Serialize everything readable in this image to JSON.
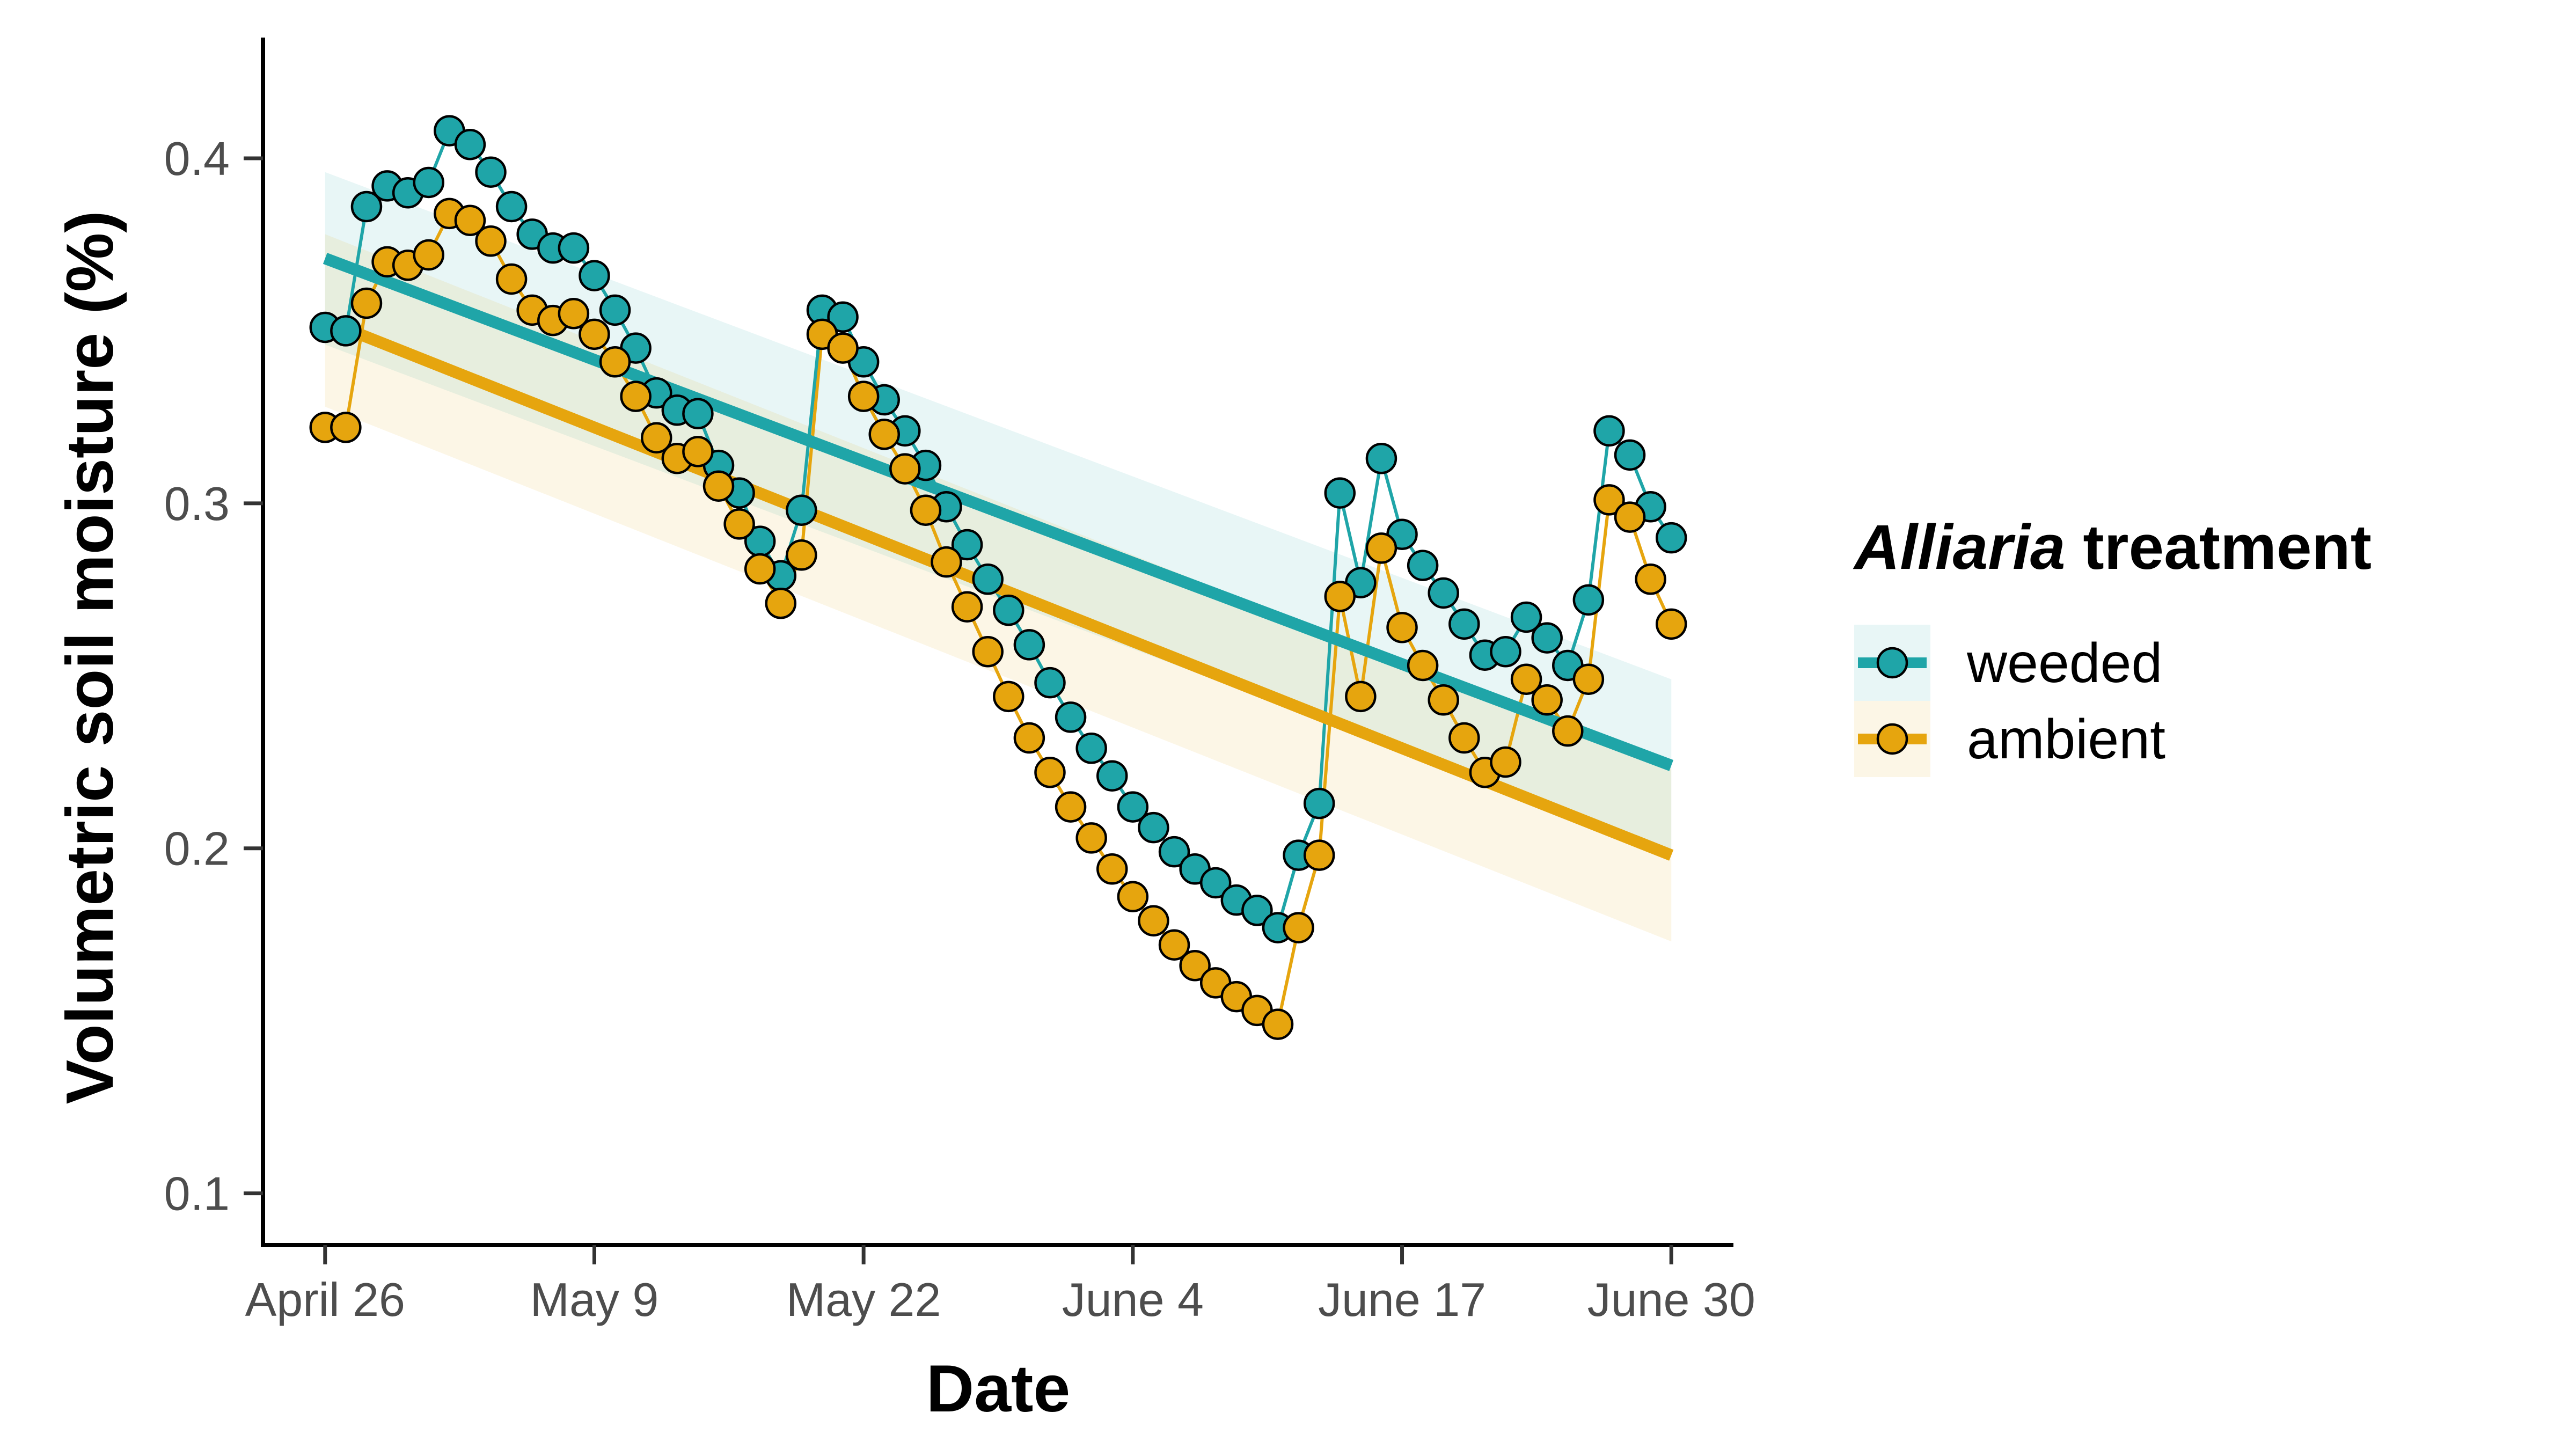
{
  "chart_data": {
    "type": "scatter",
    "title": "",
    "xlabel": "Date",
    "ylabel": "Volumetric soil moisture (%)",
    "x_ticks": [
      "April 26",
      "May 9",
      "May 22",
      "June 4",
      "June 17",
      "June 30"
    ],
    "x_range_days": [
      -3,
      68
    ],
    "y_ticks": [
      "0.1",
      "0.2",
      "0.3",
      "0.4"
    ],
    "y_tick_values": [
      0.1,
      0.2,
      0.3,
      0.4
    ],
    "ylim": [
      0.085,
      0.435
    ],
    "grid": false,
    "legend_position": "right",
    "legend_title_italic": "Alliaria",
    "legend_title_rest": " treatment",
    "series": [
      {
        "name": "weeded",
        "color": "#1fa5a8",
        "fit": {
          "y_start": 0.371,
          "y_end": 0.224,
          "ci_start": [
            0.346,
            0.396
          ],
          "ci_end": [
            0.199,
            0.249
          ]
        },
        "points": [
          [
            "April 26",
            0.351
          ],
          [
            "April 27",
            0.35
          ],
          [
            "April 28",
            0.386
          ],
          [
            "April 29",
            0.392
          ],
          [
            "April 30",
            0.39
          ],
          [
            "May 1",
            0.393
          ],
          [
            "May 2",
            0.408
          ],
          [
            "May 3",
            0.404
          ],
          [
            "May 4",
            0.396
          ],
          [
            "May 5",
            0.386
          ],
          [
            "May 6",
            0.378
          ],
          [
            "May 7",
            0.374
          ],
          [
            "May 8",
            0.374
          ],
          [
            "May 9",
            0.366
          ],
          [
            "May 10",
            0.356
          ],
          [
            "May 11",
            0.345
          ],
          [
            "May 12",
            0.332
          ],
          [
            "May 13",
            0.327
          ],
          [
            "May 14",
            0.326
          ],
          [
            "May 15",
            0.311
          ],
          [
            "May 16",
            0.303
          ],
          [
            "May 17",
            0.289
          ],
          [
            "May 18",
            0.279
          ],
          [
            "May 19",
            0.298
          ],
          [
            "May 20",
            0.356
          ],
          [
            "May 21",
            0.354
          ],
          [
            "May 22",
            0.341
          ],
          [
            "May 23",
            0.33
          ],
          [
            "May 24",
            0.321
          ],
          [
            "May 25",
            0.311
          ],
          [
            "May 26",
            0.299
          ],
          [
            "May 27",
            0.288
          ],
          [
            "May 28",
            0.278
          ],
          [
            "May 29",
            0.269
          ],
          [
            "May 30",
            0.259
          ],
          [
            "May 31",
            0.248
          ],
          [
            "June 1",
            0.238
          ],
          [
            "June 2",
            0.229
          ],
          [
            "June 3",
            0.221
          ],
          [
            "June 4",
            0.212
          ],
          [
            "June 5",
            0.206
          ],
          [
            "June 6",
            0.199
          ],
          [
            "June 7",
            0.194
          ],
          [
            "June 8",
            0.19
          ],
          [
            "June 9",
            0.185
          ],
          [
            "June 10",
            0.182
          ],
          [
            "June 11",
            0.177
          ],
          [
            "June 12",
            0.198
          ],
          [
            "June 13",
            0.213
          ],
          [
            "June 14",
            0.303
          ],
          [
            "June 15",
            0.277
          ],
          [
            "June 16",
            0.313
          ],
          [
            "June 17",
            0.291
          ],
          [
            "June 18",
            0.282
          ],
          [
            "June 19",
            0.274
          ],
          [
            "June 20",
            0.265
          ],
          [
            "June 21",
            0.256
          ],
          [
            "June 22",
            0.257
          ],
          [
            "June 23",
            0.267
          ],
          [
            "June 24",
            0.261
          ],
          [
            "June 25",
            0.253
          ],
          [
            "June 26",
            0.272
          ],
          [
            "June 27",
            0.321
          ],
          [
            "June 28",
            0.314
          ],
          [
            "June 29",
            0.299
          ],
          [
            "June 30",
            0.29
          ]
        ]
      },
      {
        "name": "ambient",
        "color": "#e6a50e",
        "fit": {
          "y_start": 0.353,
          "y_end": 0.198,
          "ci_start": [
            0.328,
            0.378
          ],
          "ci_end": [
            0.173,
            0.223
          ]
        },
        "points": [
          [
            "April 26",
            0.322
          ],
          [
            "April 27",
            0.322
          ],
          [
            "April 28",
            0.358
          ],
          [
            "April 29",
            0.37
          ],
          [
            "April 30",
            0.369
          ],
          [
            "May 1",
            0.372
          ],
          [
            "May 2",
            0.384
          ],
          [
            "May 3",
            0.382
          ],
          [
            "May 4",
            0.376
          ],
          [
            "May 5",
            0.365
          ],
          [
            "May 6",
            0.356
          ],
          [
            "May 7",
            0.353
          ],
          [
            "May 8",
            0.355
          ],
          [
            "May 9",
            0.349
          ],
          [
            "May 10",
            0.341
          ],
          [
            "May 11",
            0.331
          ],
          [
            "May 12",
            0.319
          ],
          [
            "May 13",
            0.313
          ],
          [
            "May 14",
            0.315
          ],
          [
            "May 15",
            0.305
          ],
          [
            "May 16",
            0.294
          ],
          [
            "May 17",
            0.281
          ],
          [
            "May 18",
            0.271
          ],
          [
            "May 19",
            0.285
          ],
          [
            "May 20",
            0.349
          ],
          [
            "May 21",
            0.345
          ],
          [
            "May 22",
            0.331
          ],
          [
            "May 23",
            0.32
          ],
          [
            "May 24",
            0.31
          ],
          [
            "May 25",
            0.298
          ],
          [
            "May 26",
            0.283
          ],
          [
            "May 27",
            0.27
          ],
          [
            "May 28",
            0.257
          ],
          [
            "May 29",
            0.244
          ],
          [
            "May 30",
            0.232
          ],
          [
            "May 31",
            0.222
          ],
          [
            "June 1",
            0.212
          ],
          [
            "June 2",
            0.203
          ],
          [
            "June 3",
            0.194
          ],
          [
            "June 4",
            0.186
          ],
          [
            "June 5",
            0.179
          ],
          [
            "June 6",
            0.172
          ],
          [
            "June 7",
            0.166
          ],
          [
            "June 8",
            0.161
          ],
          [
            "June 9",
            0.157
          ],
          [
            "June 10",
            0.153
          ],
          [
            "June 11",
            0.149
          ],
          [
            "June 12",
            0.177
          ],
          [
            "June 13",
            0.198
          ],
          [
            "June 14",
            0.273
          ],
          [
            "June 15",
            0.244
          ],
          [
            "June 16",
            0.287
          ],
          [
            "June 17",
            0.264
          ],
          [
            "June 18",
            0.253
          ],
          [
            "June 19",
            0.243
          ],
          [
            "June 20",
            0.232
          ],
          [
            "June 21",
            0.222
          ],
          [
            "June 22",
            0.225
          ],
          [
            "June 23",
            0.249
          ],
          [
            "June 24",
            0.243
          ],
          [
            "June 25",
            0.234
          ],
          [
            "June 26",
            0.249
          ],
          [
            "June 27",
            0.301
          ],
          [
            "June 28",
            0.296
          ],
          [
            "June 29",
            0.278
          ],
          [
            "June 30",
            0.265
          ]
        ]
      }
    ]
  }
}
